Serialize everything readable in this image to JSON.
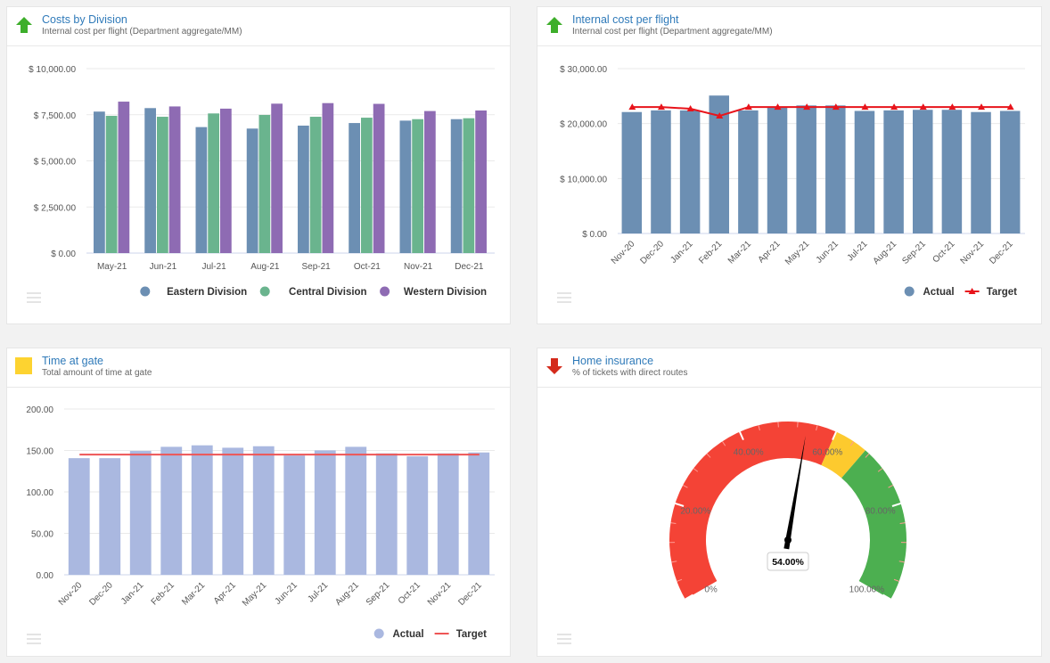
{
  "panels": {
    "costs": {
      "title": "Costs by Division",
      "subtitle": "Internal cost per flight (Department aggregate/MM)",
      "trend_icon": "arrow-up-icon",
      "trend_color": "#3dae2b"
    },
    "internal": {
      "title": "Internal cost per flight",
      "subtitle": "Internal cost per flight (Department aggregate/MM)",
      "trend_icon": "arrow-up-icon",
      "trend_color": "#3dae2b"
    },
    "gate": {
      "title": "Time at gate",
      "subtitle": "Total amount of time at gate",
      "trend_icon": "square-status-icon",
      "trend_color": "#fdd330"
    },
    "insurance": {
      "title": "Home insurance",
      "subtitle": "% of tickets with direct routes",
      "trend_icon": "arrow-down-icon",
      "trend_color": "#d42a1b"
    }
  },
  "chart_data": [
    {
      "id": "costs",
      "type": "bar",
      "categories": [
        "May-21",
        "Jun-21",
        "Jul-21",
        "Aug-21",
        "Sep-21",
        "Oct-21",
        "Nov-21",
        "Dec-21"
      ],
      "series": [
        {
          "name": "Eastern Division",
          "color": "#6c8fb3",
          "values": [
            7670,
            7860,
            6830,
            6750,
            6910,
            7050,
            7180,
            7260
          ]
        },
        {
          "name": "Central Division",
          "color": "#6ab48e",
          "values": [
            7440,
            7390,
            7570,
            7490,
            7390,
            7340,
            7260,
            7310
          ]
        },
        {
          "name": "Western Division",
          "color": "#8e6bb3",
          "values": [
            8210,
            7950,
            7830,
            8100,
            8130,
            8090,
            7700,
            7730
          ]
        }
      ],
      "yticks": [
        "$ 0.00",
        "$ 2,500.00",
        "$ 5,000.00",
        "$ 7,500.00",
        "$ 10,000.00"
      ],
      "ylim": [
        0,
        10000
      ],
      "grid": true,
      "legend": "bottom-right"
    },
    {
      "id": "internal",
      "type": "bar",
      "categories": [
        "Nov-20",
        "Dec-20",
        "Jan-21",
        "Feb-21",
        "Mar-21",
        "Apr-21",
        "May-21",
        "Jun-21",
        "Jul-21",
        "Aug-21",
        "Sep-21",
        "Oct-21",
        "Nov-21",
        "Dec-21"
      ],
      "series": [
        {
          "name": "Actual",
          "color": "#6c8fb3",
          "kind": "bar",
          "values": [
            22100,
            22400,
            22400,
            25100,
            22400,
            23100,
            23300,
            23300,
            22300,
            22400,
            22500,
            22500,
            22100,
            22300
          ]
        },
        {
          "name": "Target",
          "color": "#e8141b",
          "kind": "line-triangle",
          "values": [
            23000,
            23000,
            22700,
            21400,
            23000,
            23000,
            23000,
            23000,
            23000,
            23000,
            23000,
            23000,
            23000,
            23000
          ]
        }
      ],
      "yticks": [
        "$ 0.00",
        "$ 10,000.00",
        "$ 20,000.00",
        "$ 30,000.00"
      ],
      "ylim": [
        0,
        30000
      ],
      "grid": true,
      "legend": "bottom-right"
    },
    {
      "id": "gate",
      "type": "bar",
      "categories": [
        "Nov-20",
        "Dec-20",
        "Jan-21",
        "Feb-21",
        "Mar-21",
        "Apr-21",
        "May-21",
        "Jun-21",
        "Jul-21",
        "Aug-21",
        "Sep-21",
        "Oct-21",
        "Nov-21",
        "Dec-21"
      ],
      "series": [
        {
          "name": "Actual",
          "color": "#aab8e0",
          "kind": "bar",
          "values": [
            140.7,
            140.7,
            149.4,
            154.4,
            156.2,
            153.3,
            155.1,
            143.9,
            150.1,
            154.4,
            146.5,
            142.9,
            146.5,
            147.6
          ]
        },
        {
          "name": "Target",
          "color": "#ee5555",
          "kind": "step-line",
          "values": [
            145,
            145,
            145,
            145,
            145,
            145,
            145,
            145,
            145,
            145,
            145,
            145,
            145,
            145
          ]
        }
      ],
      "yticks": [
        "0.00",
        "50.00",
        "100.00",
        "150.00",
        "200.00"
      ],
      "ylim": [
        0,
        200
      ],
      "grid": true,
      "legend": "bottom-right"
    },
    {
      "id": "insurance",
      "type": "gauge",
      "value": 54,
      "value_label": "54.00%",
      "range": [
        0,
        100
      ],
      "tick_labels": [
        "0%",
        "20.00%",
        "40.00%",
        "60.00%",
        "80.00%",
        "100.00%"
      ],
      "bands": [
        {
          "from": 0,
          "to": 60,
          "color": "#f44336"
        },
        {
          "from": 60,
          "to": 67,
          "color": "#fdca2e"
        },
        {
          "from": 67,
          "to": 100,
          "color": "#4caf50"
        }
      ]
    }
  ]
}
